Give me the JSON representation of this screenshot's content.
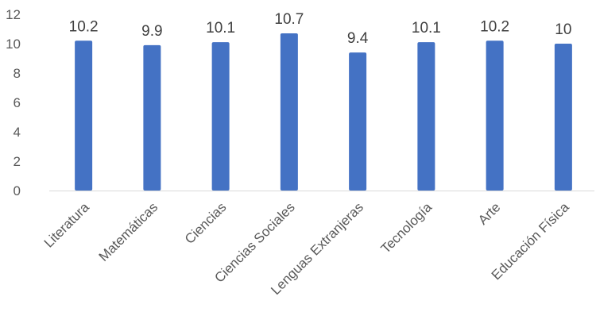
{
  "chart_data": {
    "type": "bar",
    "categories": [
      "Literatura",
      "Matemáticas",
      "Ciencias",
      "Ciencias Sociales",
      "Lenguas Extranjeras",
      "Tecnología",
      "Arte",
      "Educación Física"
    ],
    "values": [
      10.2,
      9.9,
      10.1,
      10.7,
      9.4,
      10.1,
      10.2,
      10
    ],
    "data_labels": [
      "10.2",
      "9.9",
      "10.1",
      "10.7",
      "9.4",
      "10.1",
      "10.2",
      "10"
    ],
    "y_ticks": [
      "0",
      "2",
      "4",
      "6",
      "8",
      "10",
      "12"
    ],
    "ylim": [
      0,
      12
    ],
    "title": "",
    "xlabel": "",
    "ylabel": "",
    "grid": false,
    "legend": "none",
    "bar_color": "#4472C4",
    "axis_color": "#D9D9D9"
  }
}
